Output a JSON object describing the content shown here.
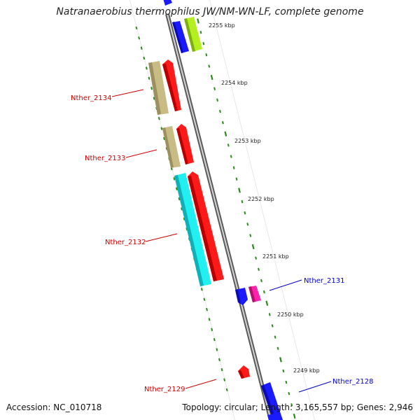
{
  "header": {
    "title": "Natranaerobius thermophilus JW/NM-WN-LF, complete genome"
  },
  "footer": {
    "accession": "Accession: NC_010718",
    "summary": "Topology: circular; Length: 3,165,557 bp; Genes: 2,946"
  },
  "ruler": {
    "tick_color": "#2a8a1a",
    "labels": [
      "2255 kbp",
      "2254 kbp",
      "2253 kbp",
      "2252 kbp",
      "2251 kbp",
      "2250 kbp",
      "2249 kbp"
    ]
  },
  "backbone": {
    "color": "#8a8a8a"
  },
  "genes": {
    "labeled": [
      {
        "name": "Nther_2134",
        "color": "#cc0000"
      },
      {
        "name": "Nther_2133",
        "color": "#cc0000"
      },
      {
        "name": "Nther_2132",
        "color": "#cc0000"
      },
      {
        "name": "Nther_2131",
        "color": "#0000cc"
      },
      {
        "name": "Nther_2129",
        "color": "#cc0000"
      },
      {
        "name": "Nther_2128",
        "color": "#0000cc"
      }
    ],
    "fill_colors": {
      "red": "#ff1a1a",
      "khaki": "#c8bc84",
      "cyan": "#22f0f0",
      "blue": "#1a1aff",
      "magenta": "#ff22aa",
      "lime": "#b4f020"
    }
  }
}
